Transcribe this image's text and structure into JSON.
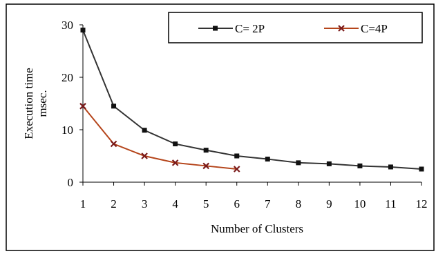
{
  "chart_data": {
    "type": "line",
    "title": "",
    "xlabel": "Number of Clusters",
    "ylabel_lines": [
      "Execution time",
      "msec."
    ],
    "x": [
      1,
      2,
      3,
      4,
      5,
      6,
      7,
      8,
      9,
      10,
      11,
      12
    ],
    "xlim": [
      1,
      12
    ],
    "ylim": [
      0,
      30
    ],
    "yticks": [
      0,
      10,
      20,
      30
    ],
    "grid": false,
    "legend_position": "top-right",
    "series": [
      {
        "name": "C= 2P",
        "color": "#333333",
        "marker": "square",
        "x": [
          1,
          2,
          3,
          4,
          5,
          6,
          7,
          8,
          9,
          10,
          11,
          12
        ],
        "values": [
          29,
          14.5,
          9.9,
          7.3,
          6.1,
          5.0,
          4.4,
          3.7,
          3.5,
          3.1,
          2.9,
          2.5
        ]
      },
      {
        "name": "C=4P",
        "color": "#b5451b",
        "marker": "x",
        "marker_color": "#7a1a1a",
        "x": [
          1,
          2,
          3,
          4,
          5,
          6
        ],
        "values": [
          14.5,
          7.3,
          5.0,
          3.7,
          3.1,
          2.5
        ]
      }
    ]
  }
}
